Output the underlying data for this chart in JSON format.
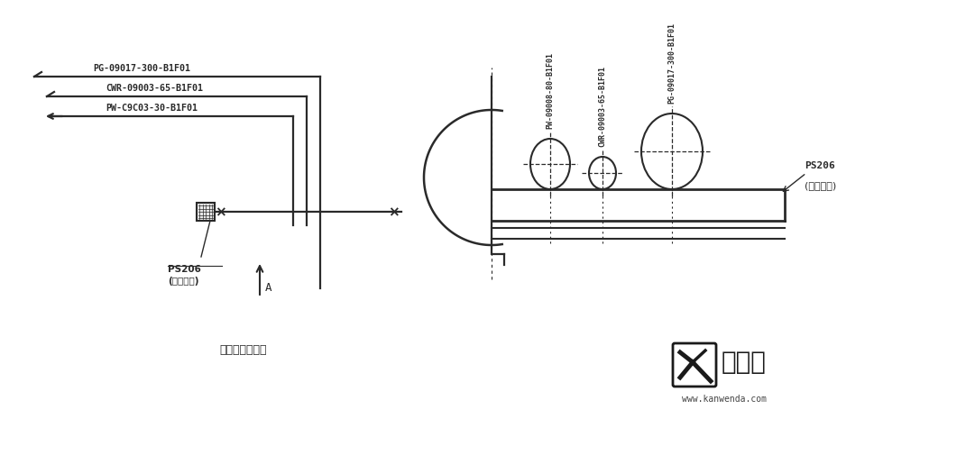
{
  "bg_color": "#ffffff",
  "line_color": "#2a2a2a",
  "text_color": "#2a2a2a",
  "title_left": "管架平面布置图",
  "label_ps206_left": "PS206\n(管架编号)",
  "label_ps206_right": "PS206\n(管架编号)",
  "pipe_labels_left": [
    "PG-09017-300-B1F01",
    "CWR-09003-65-B1F01",
    "PW-C9C03-30-B1F01"
  ],
  "pipe_labels_right": [
    "PW-09008-80-B1F01",
    "CWR-09003-65-B1F01",
    "PG-09017-300-B1F01"
  ],
  "watermark_text": "看问答",
  "watermark_url": "www.kanwenda.com",
  "arrow_label": "A",
  "lw_main": 1.6,
  "lw_thin": 1.0
}
